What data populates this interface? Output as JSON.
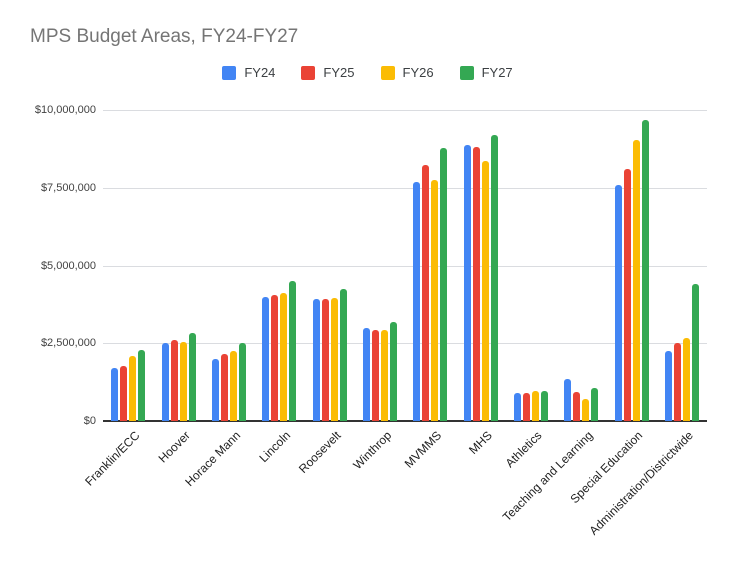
{
  "chart_data": {
    "type": "bar",
    "title": "MPS Budget Areas, FY24-FY27",
    "categories": [
      "Franklin/ECC",
      "Hoover",
      "Horace Mann",
      "Lincoln",
      "Roosevelt",
      "Winthrop",
      "MVMMS",
      "MHS",
      "Athletics",
      "Teaching and Learning",
      "Special Education",
      "Administration/Districtwide"
    ],
    "series": [
      {
        "name": "FY24",
        "color": "#4285F4",
        "values": [
          1700000,
          2520000,
          1980000,
          4000000,
          3930000,
          2990000,
          7670000,
          8890000,
          900000,
          1360000,
          7580000,
          2240000
        ]
      },
      {
        "name": "FY25",
        "color": "#EA4335",
        "values": [
          1780000,
          2600000,
          2140000,
          4060000,
          3920000,
          2910000,
          8240000,
          8820000,
          900000,
          940000,
          8110000,
          2500000
        ]
      },
      {
        "name": "FY26",
        "color": "#FBBC04",
        "values": [
          2090000,
          2540000,
          2260000,
          4100000,
          3970000,
          2920000,
          7740000,
          8370000,
          950000,
          720000,
          9050000,
          2660000
        ]
      },
      {
        "name": "FY27",
        "color": "#34A853",
        "values": [
          2280000,
          2830000,
          2520000,
          4510000,
          4230000,
          3170000,
          8780000,
          9210000,
          980000,
          1060000,
          9680000,
          4420000
        ]
      }
    ],
    "xlabel": "",
    "ylabel": "",
    "ylim": [
      0,
      10000000
    ],
    "y_ticks": [
      {
        "value": 0,
        "label": "$0"
      },
      {
        "value": 2500000,
        "label": "$2,500,000"
      },
      {
        "value": 5000000,
        "label": "$5,000,000"
      },
      {
        "value": 7500000,
        "label": "$7,500,000"
      },
      {
        "value": 10000000,
        "label": "$10,000,000"
      }
    ],
    "grid": true,
    "legend_position": "top",
    "x_tick_rotation_deg": -45
  },
  "colors": {
    "title": "#757575",
    "grid": "#dadce0",
    "axis_line": "#333333",
    "y_tick_label": "#424242",
    "x_tick_label": "#1f1f1f",
    "legend_label": "#3c4043",
    "background": "#ffffff"
  }
}
